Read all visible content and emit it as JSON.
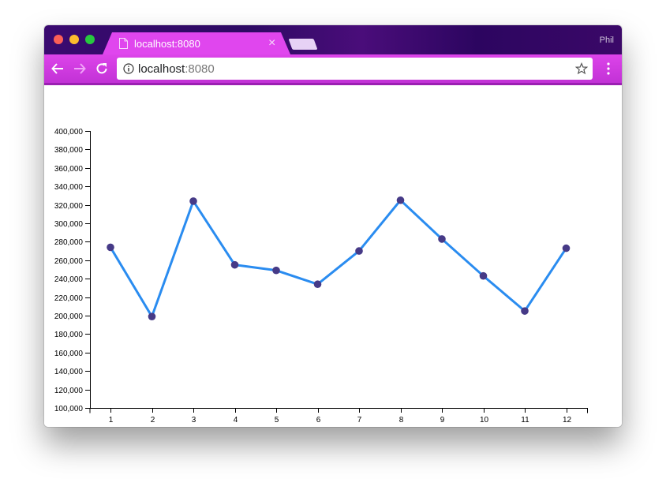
{
  "browser": {
    "tab_title": "localhost:8080",
    "tab_close": "×",
    "profile_name": "Phil",
    "url_host": "localhost",
    "url_port": ":8080",
    "icons": [
      "document-icon",
      "close-icon",
      "back-icon",
      "forward-icon",
      "reload-icon",
      "info-icon",
      "star-icon",
      "menu-icon"
    ],
    "colors": {
      "tab": "#e046ee",
      "toolbar": "#dd44ea",
      "tabstrip": "#3a0a70"
    }
  },
  "chart_data": {
    "type": "line",
    "x": [
      1,
      2,
      3,
      4,
      5,
      6,
      7,
      8,
      9,
      10,
      11,
      12
    ],
    "values": [
      274000,
      199000,
      324000,
      255000,
      249000,
      234000,
      270000,
      325000,
      283000,
      243000,
      205000,
      273000
    ],
    "ylim": [
      100000,
      400000
    ],
    "yticks": [
      "100,000",
      "120,000",
      "140,000",
      "160,000",
      "180,000",
      "200,000",
      "220,000",
      "240,000",
      "260,000",
      "280,000",
      "300,000",
      "320,000",
      "340,000",
      "360,000",
      "380,000",
      "400,000"
    ],
    "xticks": [
      "1",
      "2",
      "3",
      "4",
      "5",
      "6",
      "7",
      "8",
      "9",
      "10",
      "11",
      "12"
    ],
    "line_color": "#2a8cf0",
    "point_color": "#463a87",
    "title": "",
    "xlabel": "",
    "ylabel": "",
    "grid": false
  }
}
